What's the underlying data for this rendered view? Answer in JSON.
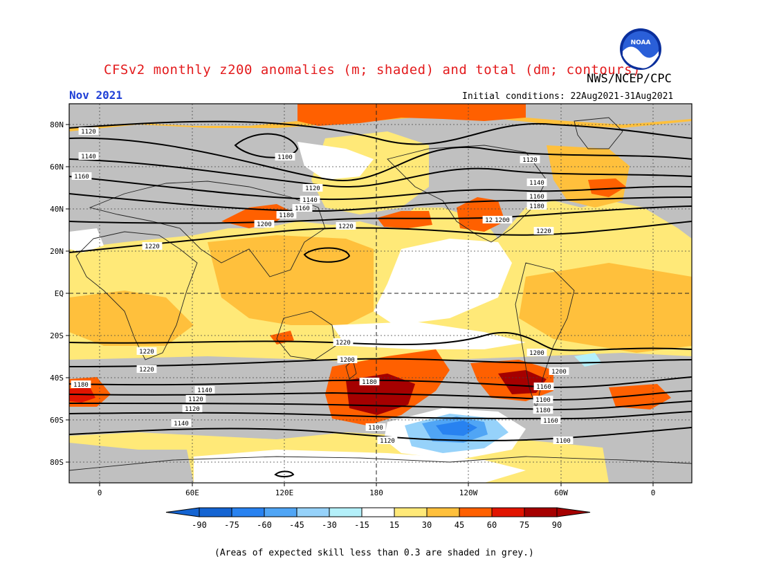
{
  "title": "CFSv2 monthly z200 anomalies (m; shaded) and total (dm; contours)",
  "agency": "NWS/NCEP/CPC",
  "logo_text": "NOAA",
  "forecast_month": "Nov 2021",
  "initial_conditions": "Initial conditions: 22Aug2021-31Aug2021",
  "footnote": "(Areas of expected skill less than 0.3 are shaded in grey.)",
  "lat_ticks": [
    "80N",
    "60N",
    "40N",
    "20N",
    "EQ",
    "20S",
    "40S",
    "60S",
    "80S"
  ],
  "lon_ticks": [
    "0",
    "60E",
    "120E",
    "180",
    "120W",
    "60W",
    "0"
  ],
  "colorbar": {
    "labels": [
      "-90",
      "-75",
      "-60",
      "-45",
      "-30",
      "-15",
      "15",
      "30",
      "45",
      "60",
      "75",
      "90"
    ],
    "colors": [
      "#1464d2",
      "#2882f0",
      "#50a5f5",
      "#96d2fa",
      "#b4f0fa",
      "#ffffff",
      "#ffe978",
      "#ffc03c",
      "#ff6000",
      "#e11400",
      "#a50000"
    ],
    "low_arrow": "#1464d2",
    "high_arrow": "#a50000"
  },
  "anomaly_colors": {
    "grey_low_skill": "#c0c0c0",
    "a15": "#ffe978",
    "a30": "#ffc03c",
    "a45": "#ff8c1e",
    "a60": "#ff6000",
    "a75": "#e11400",
    "a90": "#a50000",
    "n15": "#ffffff",
    "n30": "#b4f0fa",
    "n45": "#96d2fa",
    "n60": "#50a5f5",
    "n75": "#2882f0"
  },
  "contour_labels": [
    {
      "text": "1120"
    },
    {
      "text": "1140"
    },
    {
      "text": "1160"
    },
    {
      "text": "1100"
    },
    {
      "text": "1120"
    },
    {
      "text": "1140"
    },
    {
      "text": "1160"
    },
    {
      "text": "1180"
    },
    {
      "text": "1200"
    },
    {
      "text": "1220"
    },
    {
      "text": "1200"
    },
    {
      "text": "1120"
    },
    {
      "text": "1140"
    },
    {
      "text": "1160"
    },
    {
      "text": "1180"
    },
    {
      "text": "1200"
    },
    {
      "text": "1220"
    },
    {
      "text": "1220"
    },
    {
      "text": "1220"
    },
    {
      "text": "1200"
    },
    {
      "text": "1220"
    },
    {
      "text": "1200"
    },
    {
      "text": "1220"
    },
    {
      "text": "1200"
    },
    {
      "text": "1180"
    },
    {
      "text": "1160"
    },
    {
      "text": "1140"
    },
    {
      "text": "1120"
    },
    {
      "text": "1100"
    },
    {
      "text": "1180"
    },
    {
      "text": "1120"
    },
    {
      "text": "1100"
    },
    {
      "text": "1180"
    },
    {
      "text": "1160"
    },
    {
      "text": "1140"
    },
    {
      "text": "1120"
    },
    {
      "text": "1100"
    }
  ]
}
